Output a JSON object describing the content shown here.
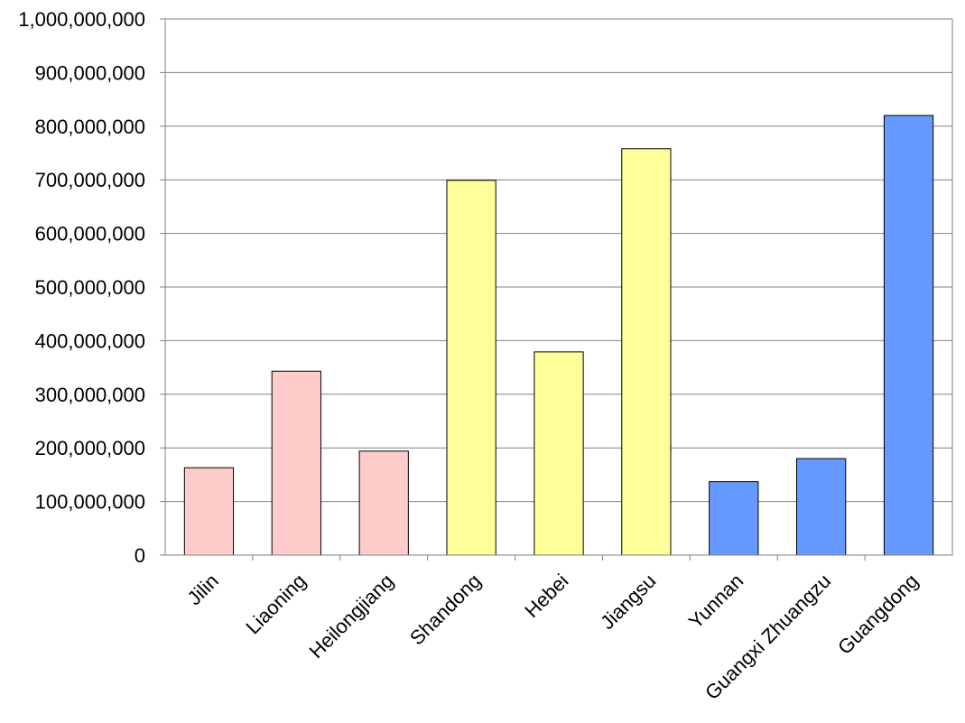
{
  "chart_data": {
    "type": "bar",
    "title": "",
    "xlabel": "",
    "ylabel": "",
    "ylim": [
      0,
      1000000000
    ],
    "yticks": [
      0,
      100000000,
      200000000,
      300000000,
      400000000,
      500000000,
      600000000,
      700000000,
      800000000,
      900000000,
      1000000000
    ],
    "ytick_labels": [
      "0",
      "100,000,000",
      "200,000,000",
      "300,000,000",
      "400,000,000",
      "500,000,000",
      "600,000,000",
      "700,000,000",
      "800,000,000",
      "900,000,000",
      "1,000,000,000"
    ],
    "grid": true,
    "legend": "none",
    "categories": [
      "Jilin",
      "Liaoning",
      "Heilongjiang",
      "Shandong",
      "Hebei",
      "Jiangsu",
      "Yunnan",
      "Guangxi Zhuangzu",
      "Guangdong"
    ],
    "values": [
      163000000,
      343000000,
      194000000,
      699000000,
      379000000,
      758000000,
      137000000,
      180000000,
      820000000
    ],
    "bar_colors": [
      "#FFCCCC",
      "#FFCCCC",
      "#FFCCCC",
      "#FFFF99",
      "#FFFF99",
      "#FFFF99",
      "#6699FF",
      "#6699FF",
      "#6699FF"
    ],
    "axis_color": "#808080",
    "grid_color": "#808080",
    "bar_edge_color": "#000000"
  }
}
